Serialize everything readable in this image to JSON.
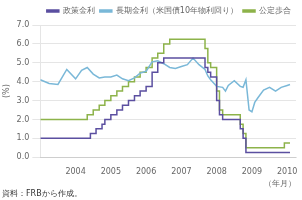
{
  "chart_data": {
    "type": "line",
    "ylabel": "(%)",
    "xlabel": "（年月）",
    "source": "資料：FRBから作成。",
    "xlim": [
      2003.0,
      2010.25
    ],
    "xticks": [
      2004,
      2005,
      2006,
      2007,
      2008,
      2009,
      2010
    ],
    "ylim": [
      0.0,
      7.0
    ],
    "yticks": [
      {
        "value": 0,
        "label": "0.0"
      },
      {
        "value": 1,
        "label": "1.0"
      },
      {
        "value": 2,
        "label": "2.0"
      },
      {
        "value": 3,
        "label": "3.0"
      },
      {
        "value": 4,
        "label": "4.0"
      },
      {
        "value": 5,
        "label": "5.0"
      },
      {
        "value": 6,
        "label": "6.0"
      },
      {
        "value": 7,
        "label": "7.0"
      }
    ],
    "grid": "y",
    "legend": "upper right",
    "series": [
      {
        "name": "政策金利",
        "color": "#5b4fa0",
        "x": [
          2003.0,
          2004.0,
          2004.42,
          2004.42,
          2004.58,
          2004.58,
          2004.75,
          2004.75,
          2004.83,
          2004.83,
          2005.0,
          2005.0,
          2005.17,
          2005.17,
          2005.33,
          2005.33,
          2005.5,
          2005.5,
          2005.67,
          2005.67,
          2005.83,
          2005.83,
          2006.0,
          2006.0,
          2006.17,
          2006.17,
          2006.33,
          2006.33,
          2006.5,
          2006.5,
          2007.67,
          2007.67,
          2007.75,
          2007.75,
          2007.83,
          2007.83,
          2008.0,
          2008.0,
          2008.08,
          2008.08,
          2008.17,
          2008.17,
          2008.5,
          2008.5,
          2008.67,
          2008.67,
          2008.75,
          2008.75,
          2008.83,
          2008.83,
          2010.08
        ],
        "values": [
          1.0,
          1.0,
          1.0,
          1.25,
          1.25,
          1.5,
          1.5,
          1.75,
          1.75,
          2.0,
          2.0,
          2.25,
          2.25,
          2.5,
          2.5,
          2.75,
          2.75,
          3.0,
          3.0,
          3.25,
          3.25,
          3.5,
          3.5,
          3.75,
          3.75,
          4.5,
          4.5,
          5.0,
          5.0,
          5.25,
          5.25,
          4.75,
          4.75,
          4.5,
          4.5,
          4.25,
          4.25,
          3.0,
          3.0,
          2.25,
          2.25,
          2.0,
          2.0,
          2.0,
          2.0,
          1.5,
          1.5,
          1.0,
          1.0,
          0.25,
          0.25
        ]
      },
      {
        "name": "長期金利（米国債10年物利回り）",
        "color": "#7ab8d8",
        "x": [
          2003.0,
          2003.25,
          2003.5,
          2003.75,
          2004.0,
          2004.17,
          2004.33,
          2004.5,
          2004.67,
          2004.83,
          2005.0,
          2005.17,
          2005.33,
          2005.5,
          2005.67,
          2005.83,
          2006.0,
          2006.17,
          2006.33,
          2006.5,
          2006.67,
          2006.83,
          2007.0,
          2007.17,
          2007.33,
          2007.5,
          2007.67,
          2007.75,
          2007.83,
          2008.0,
          2008.17,
          2008.25,
          2008.33,
          2008.5,
          2008.67,
          2008.75,
          2008.83,
          2008.92,
          2009.0,
          2009.08,
          2009.17,
          2009.33,
          2009.5,
          2009.67,
          2009.83,
          2010.0,
          2010.08
        ],
        "values": [
          4.1,
          3.9,
          3.85,
          4.65,
          4.15,
          4.6,
          4.75,
          4.4,
          4.2,
          4.25,
          4.25,
          4.35,
          4.15,
          4.05,
          4.2,
          4.45,
          4.55,
          5.05,
          5.1,
          4.95,
          4.75,
          4.7,
          4.8,
          4.9,
          5.25,
          4.9,
          4.65,
          4.3,
          4.1,
          3.75,
          3.7,
          3.5,
          3.8,
          4.05,
          3.75,
          3.7,
          4.1,
          2.5,
          2.4,
          2.9,
          3.15,
          3.55,
          3.7,
          3.5,
          3.7,
          3.8,
          3.85
        ]
      },
      {
        "name": "公定歩合",
        "color": "#8db34a",
        "x": [
          2003.0,
          2004.0,
          2004.0,
          2004.33,
          2004.33,
          2004.5,
          2004.5,
          2004.67,
          2004.67,
          2004.83,
          2004.83,
          2005.0,
          2005.0,
          2005.17,
          2005.17,
          2005.33,
          2005.33,
          2005.5,
          2005.5,
          2005.67,
          2005.67,
          2005.83,
          2005.83,
          2006.0,
          2006.0,
          2006.17,
          2006.17,
          2006.33,
          2006.33,
          2006.5,
          2006.5,
          2006.67,
          2006.67,
          2007.67,
          2007.67,
          2007.75,
          2007.75,
          2007.83,
          2007.83,
          2008.0,
          2008.0,
          2008.08,
          2008.08,
          2008.17,
          2008.17,
          2008.5,
          2008.5,
          2008.67,
          2008.67,
          2008.75,
          2008.75,
          2008.83,
          2008.83,
          2009.92,
          2009.92,
          2010.08
        ],
        "values": [
          2.0,
          2.0,
          2.0,
          2.0,
          2.25,
          2.25,
          2.5,
          2.5,
          2.75,
          2.75,
          3.0,
          3.0,
          3.25,
          3.25,
          3.5,
          3.5,
          3.75,
          3.75,
          4.0,
          4.0,
          4.25,
          4.25,
          4.5,
          4.5,
          4.75,
          4.75,
          5.25,
          5.25,
          5.5,
          5.5,
          6.0,
          6.0,
          6.25,
          6.25,
          5.75,
          5.75,
          5.0,
          5.0,
          4.75,
          4.75,
          3.5,
          3.5,
          2.5,
          2.5,
          2.25,
          2.25,
          2.25,
          2.25,
          1.75,
          1.75,
          1.25,
          1.25,
          0.5,
          0.5,
          0.75,
          0.75
        ]
      }
    ]
  }
}
